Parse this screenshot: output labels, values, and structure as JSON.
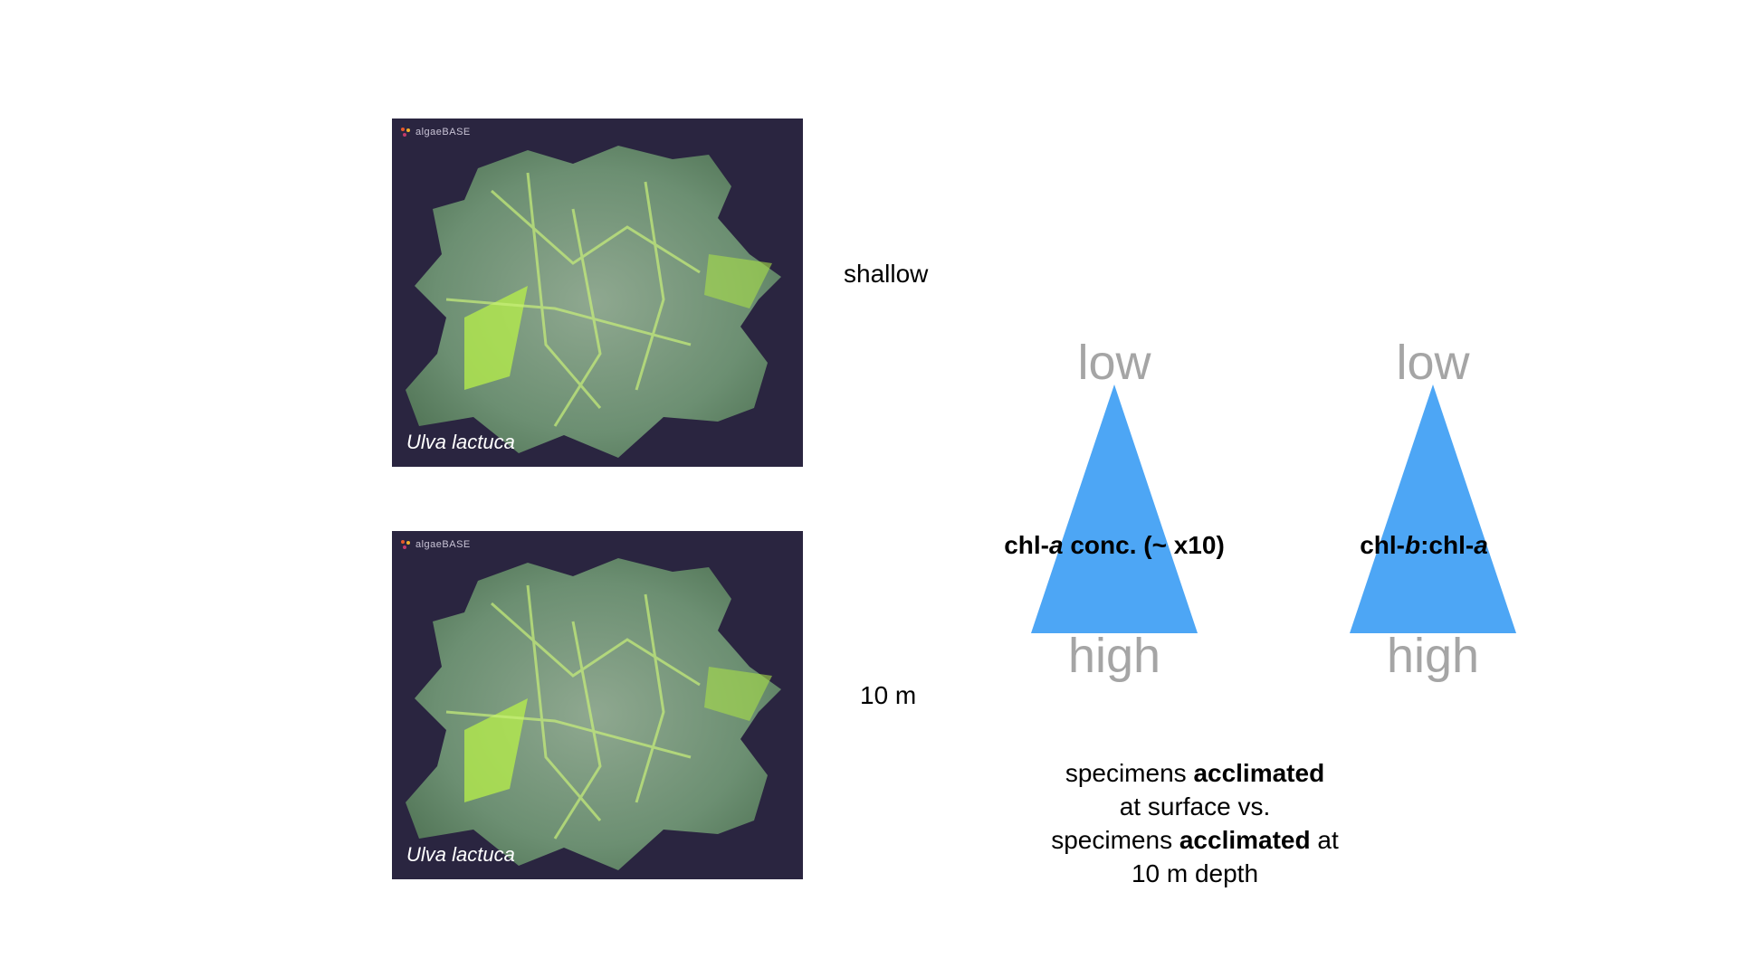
{
  "photos": [
    {
      "caption": "Ulva lactuca",
      "logo": "algaeBASE"
    },
    {
      "caption": "Ulva lactuca",
      "logo": "algaeBASE"
    }
  ],
  "depth_labels": {
    "top": "shallow",
    "bottom": "10 m"
  },
  "triangles": [
    {
      "top_label": "low",
      "bottom_label": "high",
      "title": {
        "pre": "chl-",
        "i1": "a",
        "mid": " conc. (~ x10)",
        "i2": "",
        "post": ""
      },
      "color": "#4da6f5"
    },
    {
      "top_label": "low",
      "bottom_label": "high",
      "title": {
        "pre": "chl-",
        "i1": "b",
        "mid": ":chl-",
        "i2": "a",
        "post": ""
      },
      "color": "#4da6f5"
    }
  ],
  "note": {
    "l1_a": "specimens ",
    "l1_b": "acclimated",
    "l2": "at surface vs.",
    "l3_a": "specimens ",
    "l3_b": "acclimated",
    "l3_c": " at",
    "l4": "10 m depth"
  }
}
